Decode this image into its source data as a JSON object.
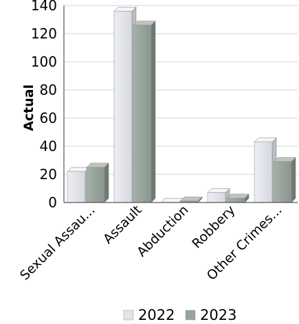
{
  "chart_data": {
    "type": "bar",
    "title": "",
    "xlabel": "",
    "ylabel": "Actual",
    "ylim": [
      0,
      140
    ],
    "yticks": [
      0,
      20,
      40,
      60,
      80,
      100,
      120,
      140
    ],
    "grid": true,
    "legend_position": "bottom",
    "categories": [
      "Sexual Assau...",
      "Assault",
      "Abduction",
      "Robbery",
      "Other Crimes..."
    ],
    "series": [
      {
        "name": "2022",
        "color": "#e3e6ec",
        "values": [
          22,
          136,
          0,
          7,
          43
        ]
      },
      {
        "name": "2023",
        "color": "#9aa79d",
        "values": [
          25,
          126,
          1,
          3,
          29
        ]
      }
    ]
  }
}
